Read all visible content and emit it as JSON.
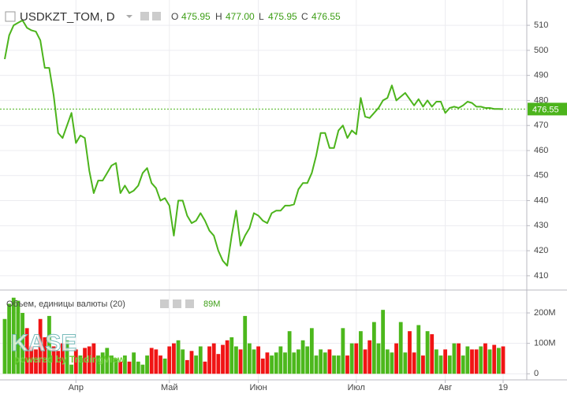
{
  "header": {
    "symbol": "USDKZT_TOM, D",
    "open_label": "O",
    "open": "475.95",
    "high_label": "H",
    "high": "477.00",
    "low_label": "L",
    "low": "475.95",
    "close_label": "C",
    "close": "476.55"
  },
  "watermark": {
    "logo": "KASE",
    "powered": "powered by TradingView"
  },
  "chart_data": [
    {
      "type": "line",
      "series": [
        {
          "name": "USDKZT_TOM",
          "color": "#4cb41c",
          "values": [
            496.5,
            506,
            510,
            511,
            512,
            509,
            508,
            507.5,
            504,
            493,
            493,
            482,
            467,
            465,
            470,
            475,
            463,
            466,
            465,
            452,
            443,
            448,
            448,
            451,
            454,
            455,
            443,
            446,
            443,
            444,
            446,
            451,
            453,
            447,
            445,
            440,
            441,
            438,
            426,
            440,
            440,
            434,
            431,
            432,
            435,
            432,
            428,
            426,
            420,
            416,
            414,
            426,
            436,
            422,
            426,
            429,
            435,
            434,
            432,
            431,
            435,
            436,
            436,
            438,
            438,
            438.5,
            444.5,
            447,
            447,
            451,
            458,
            467,
            467,
            461,
            461,
            468,
            470,
            465,
            468,
            466.5,
            481,
            473.5,
            473,
            475,
            477,
            480,
            481,
            486,
            480,
            481.5,
            483,
            480.5,
            478,
            480.5,
            477.5,
            480,
            477.5,
            479.5,
            479.5,
            475,
            477,
            477.5,
            477,
            478,
            479.5,
            479,
            477.5,
            477.5,
            477,
            477,
            476.6,
            476.6,
            476.55
          ]
        }
      ],
      "ylim": [
        404.3,
        520.1
      ],
      "yticks": [
        410,
        420,
        430,
        440,
        450,
        460,
        470,
        480,
        490,
        500,
        510
      ],
      "grid": true
    },
    {
      "type": "bar",
      "title": "Объем, единицы валюты (20)",
      "last_label": "89M",
      "up_color": "#4cb81c",
      "down_color": "#f01414",
      "categories": [
        null,
        null,
        null,
        null,
        null,
        null,
        null,
        null,
        null,
        null,
        null,
        null,
        null,
        null,
        null,
        null,
        "Апр",
        null,
        null,
        null,
        null,
        null,
        null,
        null,
        null,
        null,
        null,
        null,
        null,
        null,
        null,
        null,
        null,
        null,
        null,
        null,
        null,
        "Май",
        null,
        null,
        null,
        null,
        null,
        null,
        null,
        null,
        null,
        null,
        null,
        null,
        null,
        null,
        null,
        null,
        null,
        null,
        null,
        "Июн",
        null,
        null,
        null,
        null,
        null,
        null,
        null,
        null,
        null,
        null,
        null,
        null,
        null,
        null,
        null,
        null,
        null,
        null,
        null,
        null,
        null,
        "Июл",
        null,
        null,
        null,
        null,
        null,
        null,
        null,
        null,
        null,
        null,
        null,
        null,
        null,
        null,
        null,
        null,
        null,
        null,
        null,
        "Авг",
        null,
        null,
        null,
        null,
        null,
        null,
        null,
        null,
        null,
        null,
        null,
        null,
        "19"
      ],
      "values": [
        180,
        230,
        250,
        240,
        200,
        150,
        90,
        80,
        180,
        120,
        190,
        90,
        75,
        100,
        110,
        30,
        80,
        60,
        85,
        90,
        100,
        60,
        70,
        85,
        60,
        50,
        40,
        60,
        40,
        70,
        40,
        30,
        60,
        85,
        80,
        60,
        50,
        90,
        100,
        110,
        80,
        45,
        75,
        60,
        90,
        40,
        90,
        100,
        65,
        95,
        110,
        120,
        90,
        80,
        190,
        100,
        80,
        90,
        50,
        70,
        60,
        70,
        90,
        70,
        140,
        70,
        80,
        110,
        90,
        150,
        60,
        80,
        70,
        80,
        60,
        60,
        150,
        60,
        100,
        100,
        140,
        80,
        110,
        170,
        100,
        210,
        80,
        70,
        100,
        170,
        70,
        140,
        70,
        160,
        60,
        140,
        130,
        80,
        60,
        80,
        60,
        100,
        100,
        60,
        90,
        80,
        80,
        90,
        100,
        80,
        95,
        85,
        90
      ],
      "ylim": [
        -20,
        270
      ],
      "yticks": [
        0,
        {
          "value": 100,
          "label": "100M"
        },
        {
          "value": 200,
          "label": "200M"
        }
      ],
      "grid": true
    }
  ]
}
